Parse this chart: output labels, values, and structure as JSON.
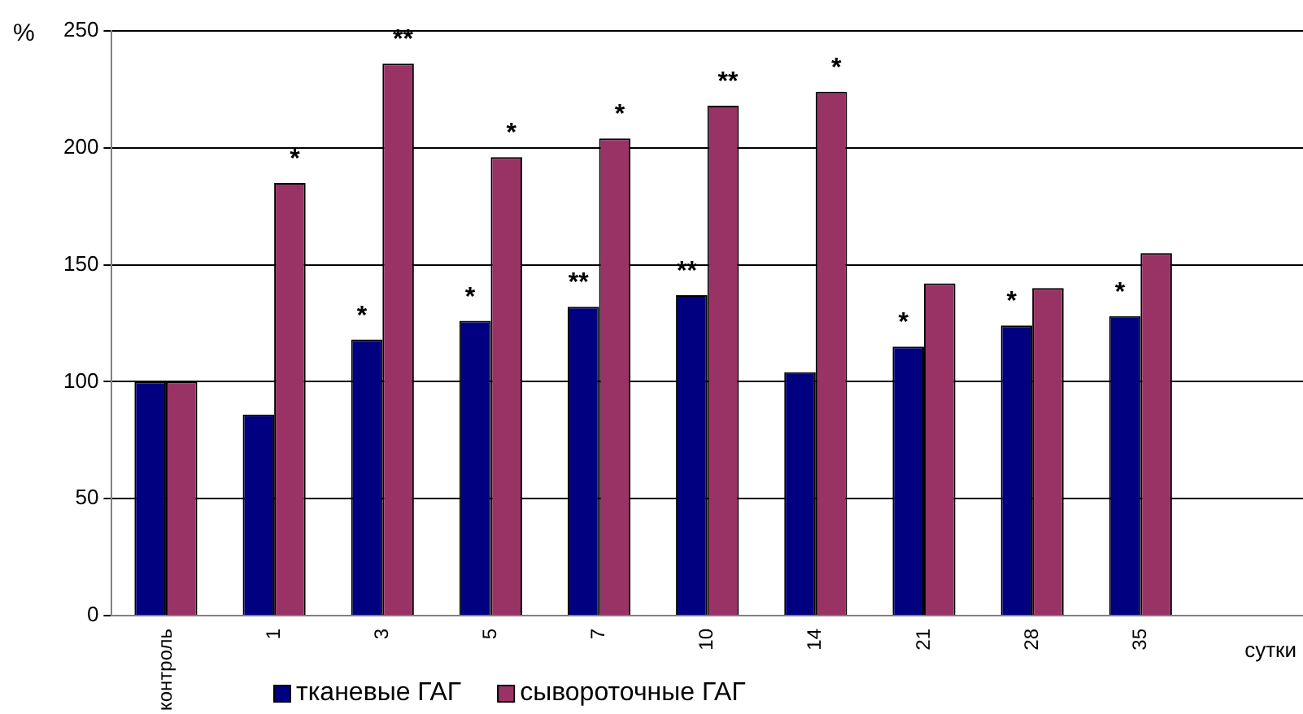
{
  "chart_data": {
    "type": "bar",
    "ylabel": "%",
    "xlabel": "сутки",
    "categories": [
      "контроль",
      "1",
      "3",
      "5",
      "7",
      "10",
      "14",
      "21",
      "28",
      "35",
      null
    ],
    "series": [
      {
        "name": "тканевые ГАГ",
        "color": "#000080",
        "values": [
          100,
          86,
          118,
          126,
          132,
          137,
          104,
          115,
          124,
          128,
          null
        ]
      },
      {
        "name": "сывороточные ГАГ",
        "color": "#993366",
        "values": [
          100,
          185,
          236,
          196,
          204,
          218,
          224,
          142,
          140,
          155,
          null
        ]
      }
    ],
    "ylim": [
      0,
      250
    ],
    "yticks": [
      0,
      50,
      100,
      150,
      200,
      250
    ],
    "grid": "y",
    "legend": "bottom",
    "annotations": [
      {
        "text": "*",
        "x": "1",
        "y": 185
      },
      {
        "text": "*",
        "x": "3",
        "y": 118
      },
      {
        "text": "**",
        "x": "3",
        "y": 236
      },
      {
        "text": "*",
        "x": "5",
        "y": 126
      },
      {
        "text": "*",
        "x": "5",
        "y": 196
      },
      {
        "text": "**",
        "x": "7",
        "y": 132
      },
      {
        "text": "*",
        "x": "7",
        "y": 204
      },
      {
        "text": "**",
        "x": "10",
        "y": 137
      },
      {
        "text": "**",
        "x": "10",
        "y": 218
      },
      {
        "text": "*",
        "x": "14",
        "y": 224
      },
      {
        "text": "*",
        "x": "21",
        "y": 115
      },
      {
        "text": "*",
        "x": "28",
        "y": 124
      },
      {
        "text": "*",
        "x": "35",
        "y": 128
      }
    ]
  }
}
